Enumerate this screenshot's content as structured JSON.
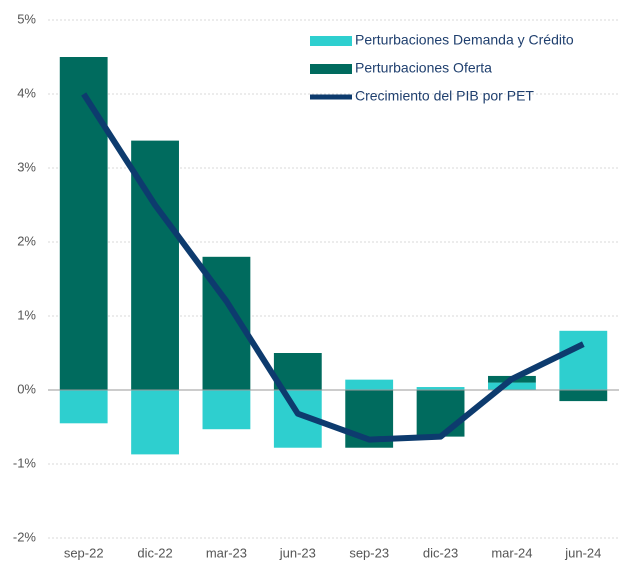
{
  "chart_data": {
    "type": "bar",
    "stacked": true,
    "categories": [
      "sep-22",
      "dic-22",
      "mar-23",
      "jun-23",
      "sep-23",
      "dic-23",
      "mar-24",
      "jun-24"
    ],
    "series": [
      {
        "name": "Perturbaciones Demanda y Crédito",
        "type": "bar",
        "color": "#2ecfcf",
        "values": [
          -0.45,
          -0.87,
          -0.53,
          -0.78,
          0.14,
          0.04,
          0.1,
          0.8
        ]
      },
      {
        "name": "Perturbaciones Oferta",
        "type": "bar",
        "color": "#006b5e",
        "values": [
          4.5,
          3.37,
          1.8,
          0.5,
          -0.78,
          -0.63,
          0.09,
          -0.15
        ]
      },
      {
        "name": "Crecimiento del PIB por PET",
        "type": "line",
        "color": "#0d3b6e",
        "values": [
          4.0,
          2.5,
          1.2,
          -0.32,
          -0.67,
          -0.63,
          0.15,
          0.62
        ]
      }
    ],
    "ylim": [
      -2,
      5
    ],
    "yticks": [
      {
        "value": -2,
        "label": "-2%"
      },
      {
        "value": -1,
        "label": "-1%"
      },
      {
        "value": 0,
        "label": "0%"
      },
      {
        "value": 1,
        "label": "1%"
      },
      {
        "value": 2,
        "label": "2%"
      },
      {
        "value": 3,
        "label": "3%"
      },
      {
        "value": 4,
        "label": "4%"
      },
      {
        "value": 5,
        "label": "5%"
      }
    ],
    "grid": true,
    "legend": "upper-right"
  }
}
